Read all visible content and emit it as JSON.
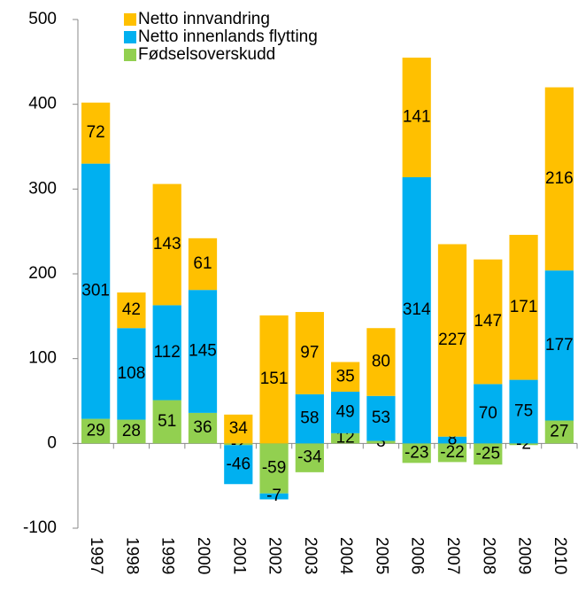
{
  "chart_data": {
    "type": "stacked_bar",
    "categories": [
      "1997",
      "1998",
      "1999",
      "2000",
      "2001",
      "2002",
      "2003",
      "2004",
      "2005",
      "2006",
      "2007",
      "2008",
      "2009",
      "2010"
    ],
    "series": [
      {
        "name": "Fødselsoverskudd",
        "color": "#92d050",
        "values": [
          29,
          28,
          51,
          36,
          -2,
          -59,
          -34,
          12,
          3,
          -23,
          -22,
          -25,
          -2,
          27
        ]
      },
      {
        "name": "Netto innenlands flytting",
        "color": "#00b0f0",
        "values": [
          301,
          108,
          112,
          145,
          -46,
          -7,
          58,
          49,
          53,
          314,
          8,
          70,
          75,
          177
        ]
      },
      {
        "name": "Netto innvandring",
        "color": "#ffc000",
        "values": [
          72,
          42,
          143,
          61,
          34,
          151,
          97,
          35,
          80,
          141,
          227,
          147,
          171,
          216
        ]
      }
    ],
    "ylim": [
      -100,
      500
    ],
    "yticks": [
      -100,
      0,
      100,
      200,
      300,
      400,
      500
    ],
    "grid": false
  }
}
